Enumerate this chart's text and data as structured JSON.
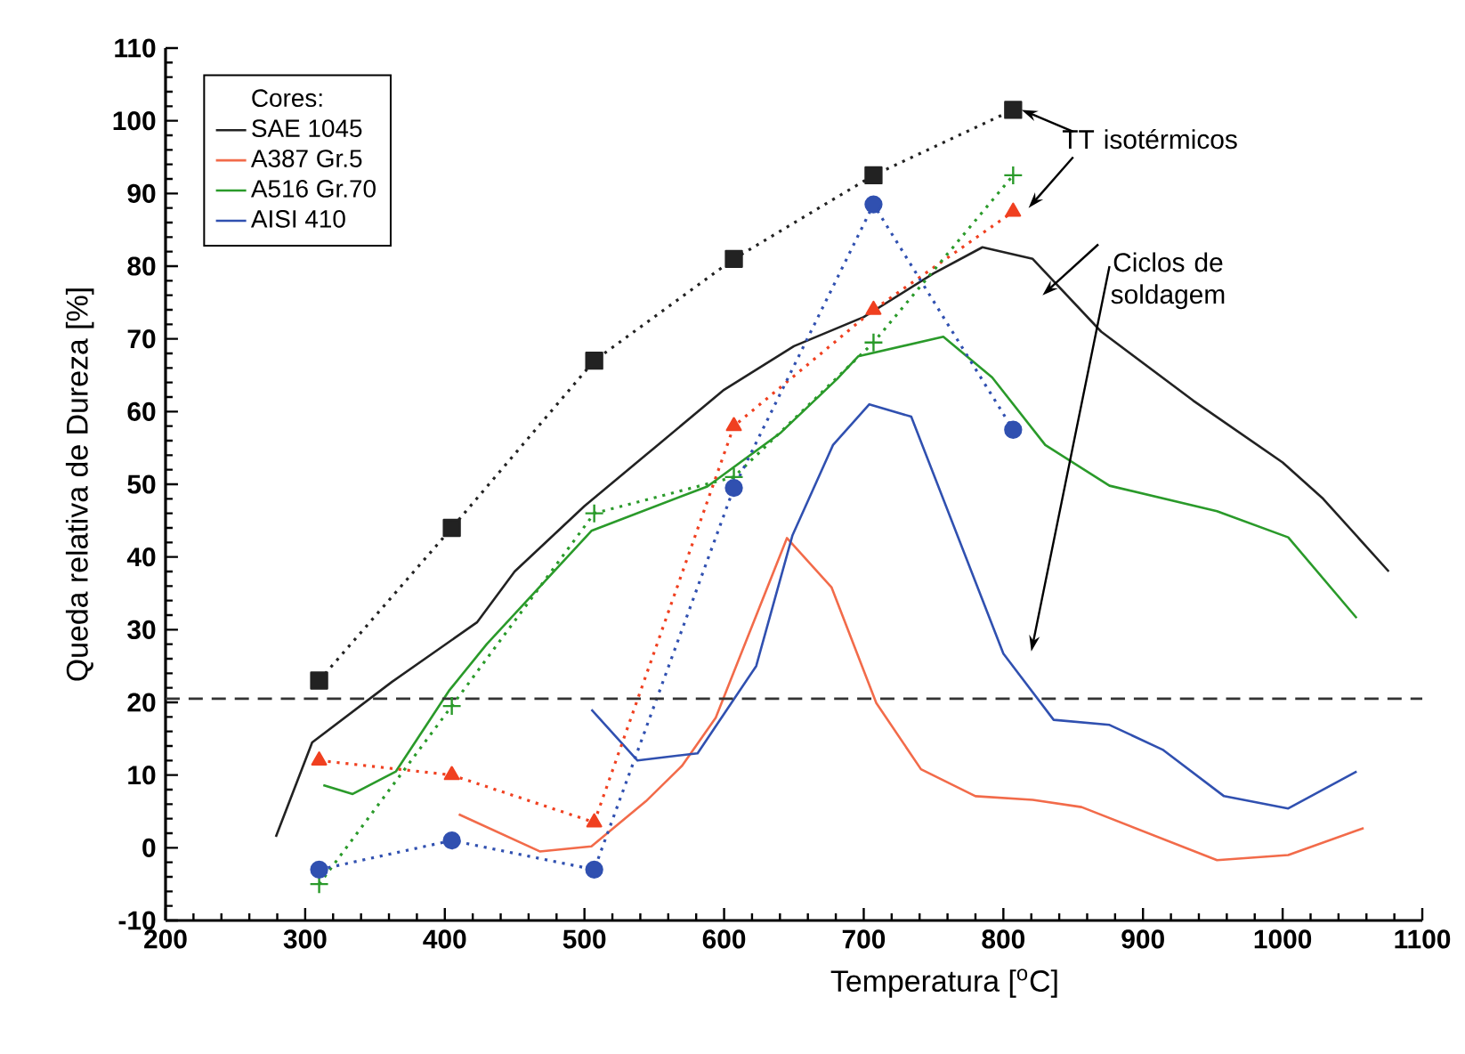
{
  "chart_data": {
    "type": "line",
    "xlabel": "Temperatura    [$^{o}$C]",
    "ylabel": "Queda relativa de Dureza  [%]",
    "legend_title": "Cores:",
    "legend": "top left",
    "grid": false,
    "xlim": [
      200,
      1100
    ],
    "ylim": [
      -10,
      110
    ],
    "xticks": [
      200,
      300,
      400,
      500,
      600,
      700,
      800,
      900,
      1000,
      1100
    ],
    "yticks": [
      -10,
      0,
      10,
      20,
      30,
      40,
      50,
      60,
      70,
      80,
      90,
      100,
      110
    ],
    "ref_lines": [
      {
        "axis": "y",
        "value": 20.5,
        "line_style": "dashed",
        "color": "#333333"
      }
    ],
    "annotations": [
      {
        "text": "TT isotérmicos",
        "x": 807,
        "y": 101.5
      },
      "Ciclos de soldagem"
    ],
    "series": [
      {
        "name": "SAE 1045",
        "color": "#222222",
        "marker": "none",
        "line_style": "solid",
        "x": [
          279,
          305,
          362,
          423,
          450,
          500,
          550,
          600,
          650,
          700,
          750,
          785,
          821,
          870,
          936,
          1000,
          1029,
          1076
        ],
        "values": [
          1.5,
          14.5,
          22.8,
          31,
          38,
          47,
          55,
          63,
          69,
          73,
          79,
          82.6,
          81,
          71,
          61.5,
          53,
          48,
          38
        ]
      },
      {
        "name": "A387 Gr.5",
        "color": "#f26b4a",
        "marker": "none",
        "line_style": "solid",
        "x": [
          410,
          468,
          505,
          544,
          570,
          594,
          645,
          677,
          709,
          741,
          780,
          821,
          856,
          953,
          1004,
          1058
        ],
        "values": [
          4.6,
          -0.5,
          0.2,
          6.4,
          11.3,
          17.9,
          42.6,
          35.8,
          19.9,
          10.8,
          7.1,
          6.6,
          5.6,
          -1.7,
          -1.0,
          2.7
        ]
      },
      {
        "name": "A516 Gr.70",
        "color": "#2a9a2a",
        "marker": "none",
        "line_style": "solid",
        "x": [
          313,
          334,
          365,
          403,
          430,
          505,
          588,
          640,
          681,
          696,
          757,
          792,
          830,
          876,
          953,
          1004,
          1053
        ],
        "values": [
          8.6,
          7.4,
          10.5,
          21.6,
          28,
          43.6,
          49.7,
          57,
          64.5,
          67.6,
          70.3,
          64.7,
          55.4,
          49.8,
          46.3,
          42.7,
          31.6
        ]
      },
      {
        "name": "AISI 410",
        "color": "#3050b0",
        "marker": "none",
        "line_style": "solid",
        "x": [
          505,
          538,
          581,
          623,
          649,
          678,
          704,
          734,
          800,
          836,
          876,
          914,
          958,
          1004,
          1053
        ],
        "values": [
          19,
          12,
          13,
          25,
          43,
          55.4,
          61,
          59.3,
          26.7,
          17.6,
          16.9,
          13.5,
          7.1,
          5.4,
          10.5
        ]
      },
      {
        "color": "#222222",
        "marker": "square",
        "line_style": "dotted",
        "x": [
          310,
          405,
          507,
          607,
          707,
          807
        ],
        "values": [
          23,
          44,
          67,
          81,
          92.5,
          101.5
        ]
      },
      {
        "color": "#f04020",
        "marker": "triangle",
        "line_style": "dotted",
        "x": [
          310,
          405,
          507,
          607,
          707,
          807
        ],
        "values": [
          12,
          10,
          3.5,
          58,
          74,
          87.5
        ]
      },
      {
        "color": "#2a9a2a",
        "marker": "cross",
        "line_style": "dotted",
        "x": [
          310,
          405,
          507,
          607,
          707,
          807
        ],
        "values": [
          -5,
          19.5,
          46,
          51,
          69.5,
          92.5
        ]
      },
      {
        "color": "#3050b0",
        "marker": "circle",
        "line_style": "dotted",
        "x": [
          310,
          405,
          507,
          607,
          707,
          807
        ],
        "values": [
          -3,
          1,
          -3,
          49.5,
          88.5,
          57.5
        ]
      }
    ]
  }
}
